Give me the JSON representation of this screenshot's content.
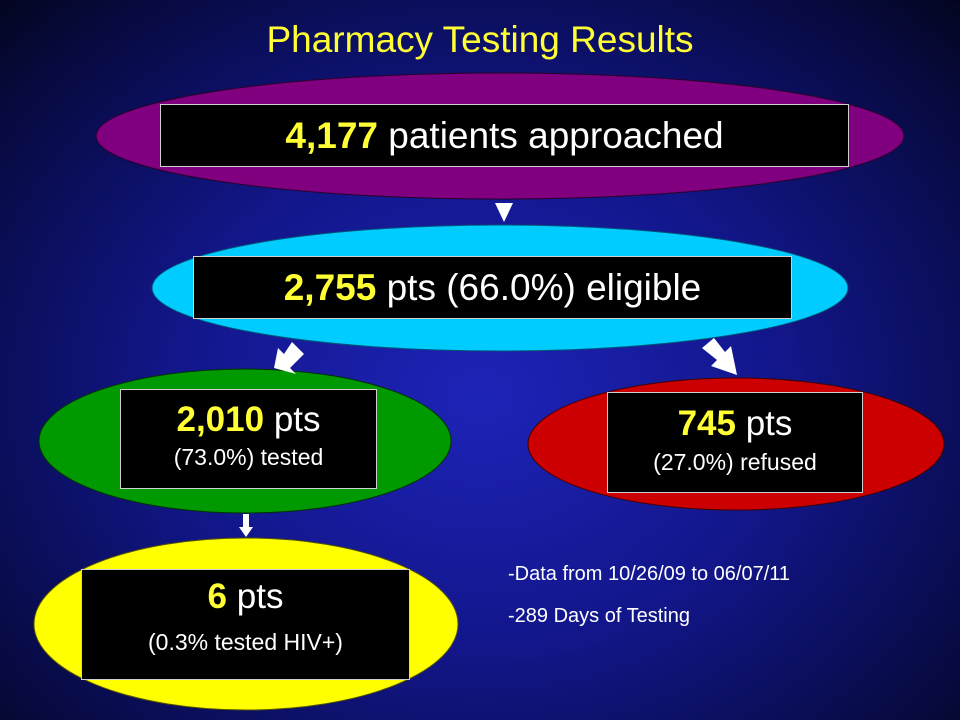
{
  "title": "Pharmacy Testing Results",
  "nodes": {
    "approached": {
      "number": "4,177",
      "text": "patients approached",
      "fill": "#800080"
    },
    "eligible": {
      "number": "2,755",
      "text": "pts (66.0%) eligible",
      "fill": "#00ccff"
    },
    "tested": {
      "number": "2,010",
      "text": "pts",
      "subtext": "(73.0%) tested",
      "fill": "#009900"
    },
    "refused": {
      "number": "745",
      "text": "pts",
      "subtext": "(27.0%) refused",
      "fill": "#cc0000"
    },
    "positive": {
      "number": "6",
      "text": "pts",
      "subtext": "(0.3% tested HIV+)",
      "fill": "#ffff00"
    }
  },
  "notes": [
    "-Data from 10/26/09 to 06/07/11",
    "-289 Days of Testing"
  ],
  "colors": {
    "title": "#ffff33",
    "number": "#ffff33",
    "box": "#000000",
    "arrow": "#ffffff"
  }
}
